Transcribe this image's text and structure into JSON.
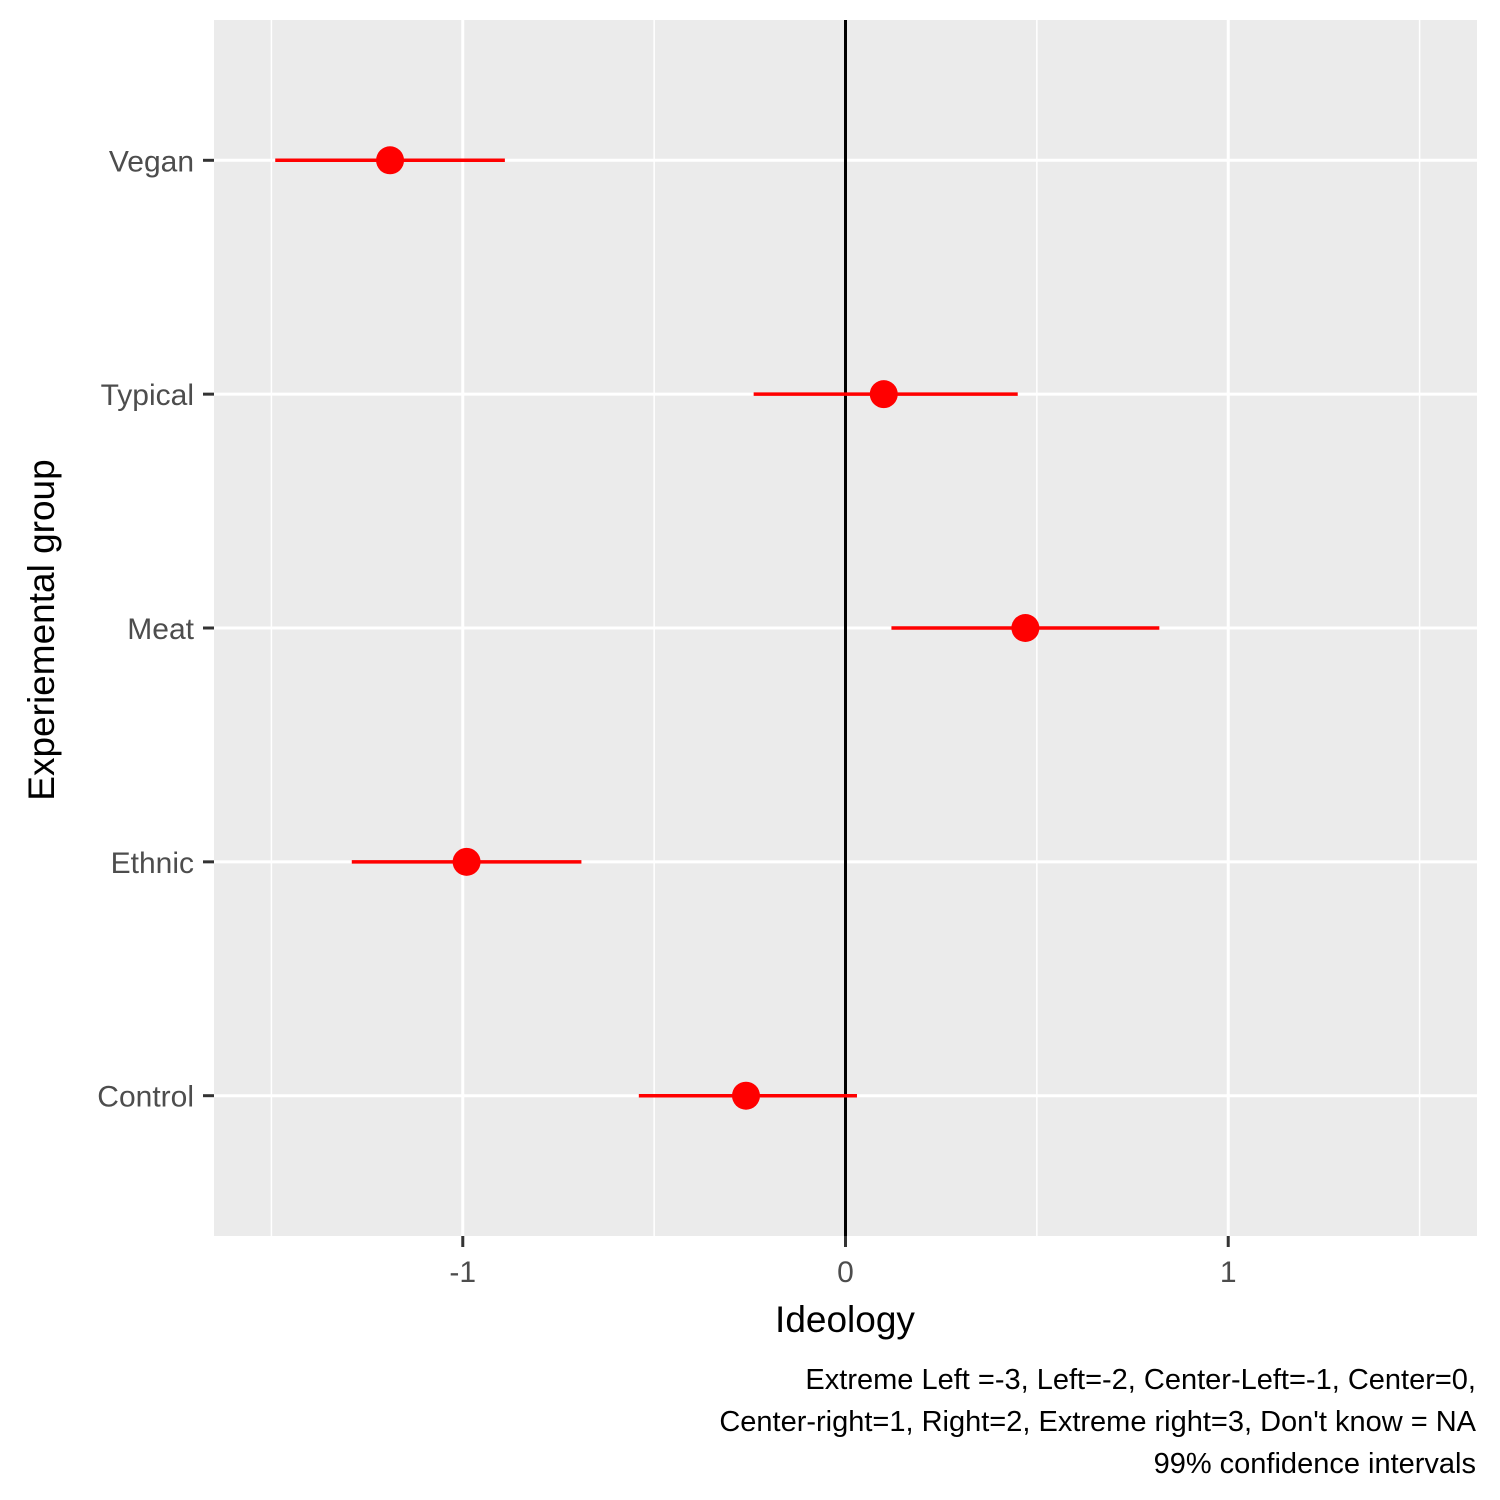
{
  "chart_data": {
    "type": "pointrange",
    "orientation": "horizontal",
    "xlabel": "Ideology",
    "ylabel": "Experiemental group",
    "xlim": [
      -1.65,
      1.65
    ],
    "x_ticks": [
      -1,
      0,
      1
    ],
    "x_tick_labels": [
      "-1",
      "0",
      "1"
    ],
    "reference_line_x": 0,
    "categories": [
      "Control",
      "Ethnic",
      "Meat",
      "Typical",
      "Vegan"
    ],
    "estimates": [
      -0.26,
      -0.99,
      0.47,
      0.1,
      -1.19
    ],
    "lower": [
      -0.54,
      -1.29,
      0.12,
      -0.24,
      -1.49
    ],
    "upper": [
      0.03,
      -0.69,
      0.82,
      0.45,
      -0.89
    ],
    "point_color": "#ff0000",
    "panel_background": "#ebebeb",
    "grid_color": "#ffffff",
    "grid": true,
    "legend": "none",
    "caption": [
      "Extreme Left =-3, Left=-2, Center-Left=-1, Center=0, ",
      "Center-right=1, Right=2, Extreme right=3, Don't know = NA",
      "99% confidence intervals"
    ]
  }
}
